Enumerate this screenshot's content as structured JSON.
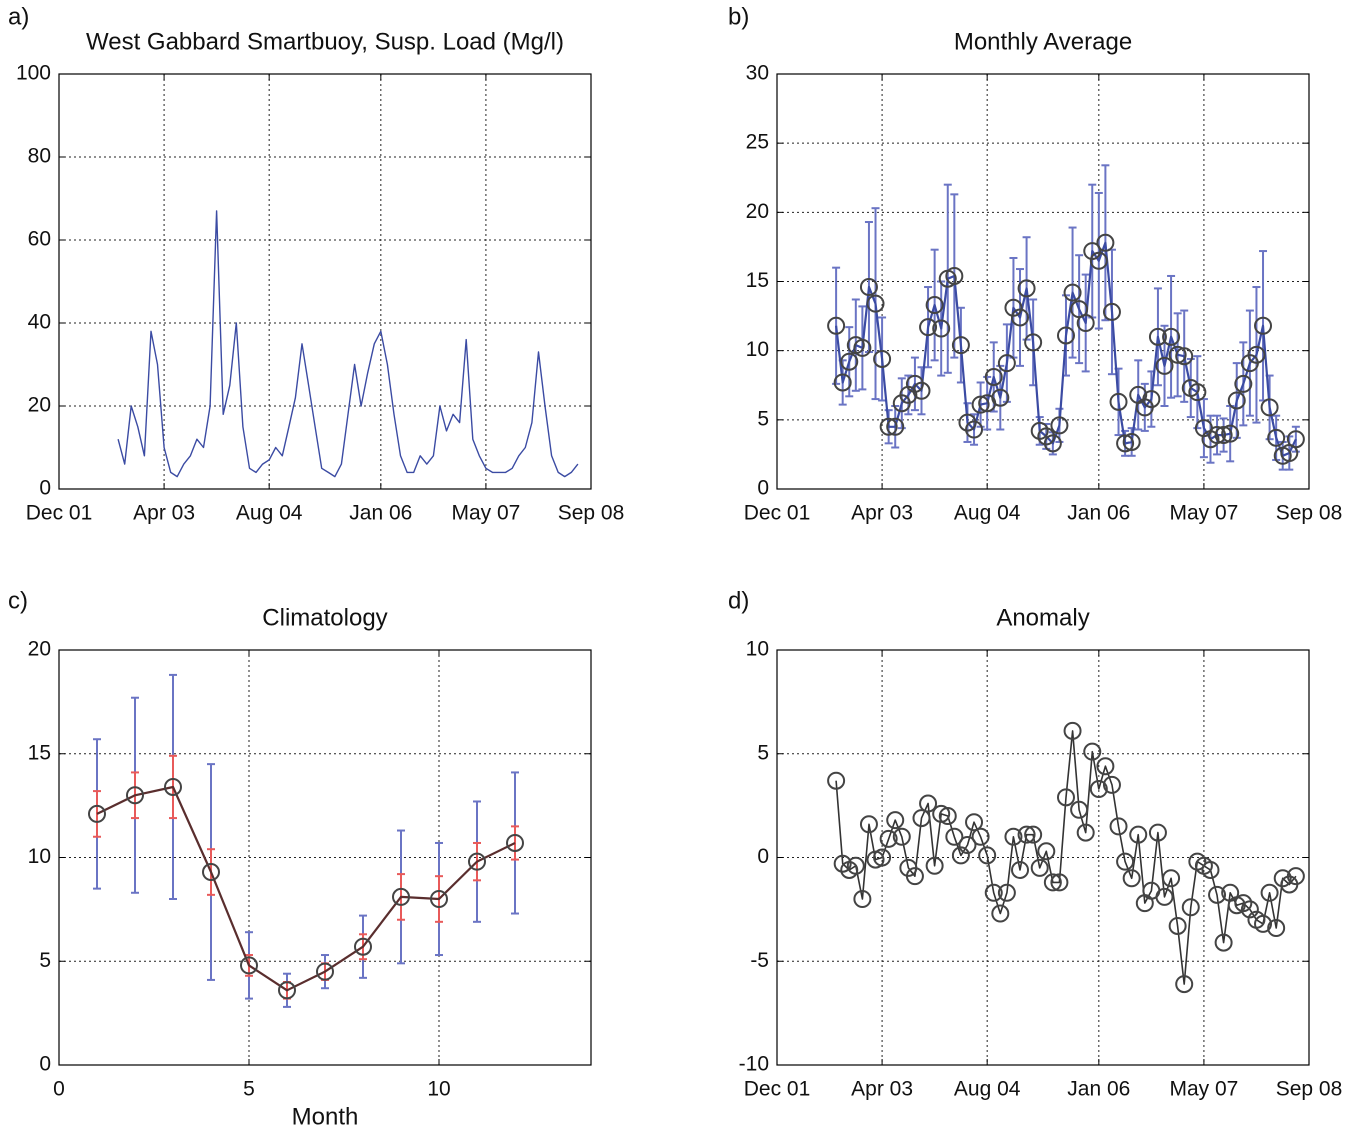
{
  "chart_data": [
    {
      "type": "line",
      "label": "a)",
      "title": "West Gabbard Smartbuoy, Susp. Load (Mg/l)",
      "color": "#3b4ba3",
      "markers": false,
      "grid": true,
      "xlim": [
        "2001-12",
        "2008-09"
      ],
      "xticks": [
        {
          "value": "2001-12",
          "label": "Dec 01"
        },
        {
          "value": "2003-04",
          "label": "Apr 03"
        },
        {
          "value": "2004-08",
          "label": "Aug 04"
        },
        {
          "value": "2006-01",
          "label": "Jan 06"
        },
        {
          "value": "2007-05",
          "label": "May 07"
        },
        {
          "value": "2008-09",
          "label": "Sep 08"
        }
      ],
      "ylim": [
        0,
        100
      ],
      "yticks": [
        0,
        20,
        40,
        60,
        80,
        100
      ],
      "x": [
        "2002-09",
        "2002-10",
        "2002-11",
        "2002-12",
        "2003-01",
        "2003-02",
        "2003-03",
        "2003-04",
        "2003-05",
        "2003-06",
        "2003-07",
        "2003-08",
        "2003-09",
        "2003-10",
        "2003-11",
        "2003-12",
        "2004-01",
        "2004-02",
        "2004-03",
        "2004-04",
        "2004-05",
        "2004-06",
        "2004-07",
        "2004-08",
        "2004-09",
        "2004-10",
        "2004-11",
        "2004-12",
        "2005-01",
        "2005-02",
        "2005-03",
        "2005-04",
        "2005-05",
        "2005-06",
        "2005-07",
        "2005-08",
        "2005-09",
        "2005-10",
        "2005-11",
        "2005-12",
        "2006-01",
        "2006-02",
        "2006-03",
        "2006-04",
        "2006-05",
        "2006-06",
        "2006-07",
        "2006-08",
        "2006-09",
        "2006-10",
        "2006-11",
        "2006-12",
        "2007-01",
        "2007-02",
        "2007-03",
        "2007-04",
        "2007-05",
        "2007-06",
        "2007-07",
        "2007-08",
        "2007-09",
        "2007-10",
        "2007-11",
        "2007-12",
        "2008-01",
        "2008-02",
        "2008-03",
        "2008-04",
        "2008-05",
        "2008-06",
        "2008-07"
      ],
      "values": [
        12,
        6,
        20,
        15,
        8,
        38,
        30,
        10,
        4,
        3,
        6,
        8,
        12,
        10,
        20,
        67,
        18,
        25,
        40,
        15,
        5,
        4,
        6,
        7,
        10,
        8,
        15,
        22,
        35,
        25,
        15,
        5,
        4,
        3,
        6,
        18,
        30,
        20,
        28,
        35,
        38,
        30,
        18,
        8,
        4,
        4,
        8,
        6,
        8,
        20,
        14,
        18,
        16,
        36,
        12,
        8,
        5,
        4,
        4,
        4,
        5,
        8,
        10,
        16,
        33,
        20,
        8,
        4,
        3,
        4,
        6
      ]
    },
    {
      "type": "errorbar",
      "label": "b)",
      "title": "Monthly Average",
      "color": "#3b4ba3",
      "error_color": "#6a74c4",
      "marker_color": "#444444",
      "grid": true,
      "xlim": [
        "2001-12",
        "2008-09"
      ],
      "xticks": [
        {
          "value": "2001-12",
          "label": "Dec 01"
        },
        {
          "value": "2003-04",
          "label": "Apr 03"
        },
        {
          "value": "2004-08",
          "label": "Aug 04"
        },
        {
          "value": "2006-01",
          "label": "Jan 06"
        },
        {
          "value": "2007-05",
          "label": "May 07"
        },
        {
          "value": "2008-09",
          "label": "Sep 08"
        }
      ],
      "ylim": [
        0,
        30
      ],
      "yticks": [
        0,
        5,
        10,
        15,
        20,
        25,
        30
      ],
      "x": [
        "2002-09",
        "2002-10",
        "2002-11",
        "2002-12",
        "2003-01",
        "2003-02",
        "2003-03",
        "2003-04",
        "2003-05",
        "2003-06",
        "2003-07",
        "2003-08",
        "2003-09",
        "2003-10",
        "2003-11",
        "2003-12",
        "2004-01",
        "2004-02",
        "2004-03",
        "2004-04",
        "2004-05",
        "2004-06",
        "2004-07",
        "2004-08",
        "2004-09",
        "2004-10",
        "2004-11",
        "2004-12",
        "2005-01",
        "2005-02",
        "2005-03",
        "2005-04",
        "2005-05",
        "2005-06",
        "2005-07",
        "2005-08",
        "2005-09",
        "2005-10",
        "2005-11",
        "2005-12",
        "2006-01",
        "2006-02",
        "2006-03",
        "2006-04",
        "2006-05",
        "2006-06",
        "2006-07",
        "2006-08",
        "2006-09",
        "2006-10",
        "2006-11",
        "2006-12",
        "2007-01",
        "2007-02",
        "2007-03",
        "2007-04",
        "2007-05",
        "2007-06",
        "2007-07",
        "2007-08",
        "2007-09",
        "2007-10",
        "2007-11",
        "2007-12",
        "2008-01",
        "2008-02",
        "2008-03",
        "2008-04",
        "2008-05",
        "2008-06",
        "2008-07"
      ],
      "values": [
        11.8,
        7.7,
        9.2,
        10.4,
        10.2,
        14.6,
        13.4,
        9.4,
        4.5,
        4.5,
        6.2,
        6.8,
        7.6,
        7.1,
        11.7,
        13.3,
        11.6,
        15.2,
        15.4,
        10.4,
        4.8,
        4.3,
        6.1,
        6.2,
        8.1,
        6.6,
        9.1,
        13.1,
        12.4,
        14.5,
        10.6,
        4.2,
        3.8,
        3.3,
        4.6,
        11.1,
        14.2,
        13.0,
        12.0,
        17.2,
        16.5,
        17.8,
        12.8,
        6.3,
        3.3,
        3.4,
        6.8,
        5.9,
        6.5,
        11.0,
        8.9,
        11.0,
        9.7,
        9.6,
        7.3,
        7.0,
        4.4,
        3.6,
        3.9,
        3.9,
        4.0,
        6.4,
        7.6,
        9.1,
        9.7,
        11.8,
        5.9,
        3.7,
        2.4,
        2.6,
        3.6
      ],
      "errors": [
        4.2,
        1.6,
        2.5,
        3.3,
        3.0,
        4.7,
        6.9,
        3.0,
        1.2,
        1.5,
        1.8,
        1.4,
        1.9,
        1.7,
        2.9,
        4.0,
        3.4,
        6.8,
        5.9,
        2.7,
        1.4,
        1.1,
        1.6,
        1.9,
        2.5,
        2.3,
        2.8,
        3.6,
        3.5,
        3.7,
        3.1,
        1.0,
        0.9,
        0.8,
        1.2,
        2.9,
        4.7,
        3.9,
        3.5,
        4.8,
        4.9,
        5.6,
        4.5,
        2.4,
        0.9,
        1.0,
        2.5,
        1.7,
        2.0,
        3.5,
        2.9,
        4.4,
        3.0,
        3.3,
        2.1,
        2.6,
        2.1,
        1.7,
        1.4,
        1.2,
        2.0,
        2.7,
        3.0,
        3.8,
        4.9,
        5.4,
        2.3,
        1.6,
        1.0,
        1.2,
        0.9
      ]
    },
    {
      "type": "errorbar",
      "label": "c)",
      "title": "Climatology",
      "xlabel": "Month",
      "color": "#5a2e2e",
      "error_color": "#6a74c4",
      "se_color": "#e85a5a",
      "marker_color": "#444444",
      "grid": true,
      "xlim": [
        0,
        14
      ],
      "xticks": [
        0,
        5,
        10
      ],
      "ylim": [
        0,
        20
      ],
      "yticks": [
        0,
        5,
        10,
        15,
        20
      ],
      "x": [
        1,
        2,
        3,
        4,
        5,
        6,
        7,
        8,
        9,
        10,
        11,
        12
      ],
      "values": [
        12.1,
        13.0,
        13.4,
        9.3,
        4.8,
        3.6,
        4.5,
        5.7,
        8.1,
        8.0,
        9.8,
        10.7
      ],
      "errors": [
        3.6,
        4.7,
        5.4,
        5.2,
        1.6,
        0.8,
        0.8,
        1.5,
        3.2,
        2.7,
        2.9,
        3.4
      ],
      "se_errors": [
        1.1,
        1.1,
        1.5,
        1.1,
        0.5,
        0.4,
        0.4,
        0.6,
        1.1,
        1.1,
        0.9,
        0.8
      ]
    },
    {
      "type": "line",
      "label": "d)",
      "title": "Anomaly",
      "color": "#333333",
      "marker_color": "#444444",
      "markers": true,
      "grid": true,
      "xlim": [
        "2001-12",
        "2008-09"
      ],
      "xticks": [
        {
          "value": "2001-12",
          "label": "Dec 01"
        },
        {
          "value": "2003-04",
          "label": "Apr 03"
        },
        {
          "value": "2004-08",
          "label": "Aug 04"
        },
        {
          "value": "2006-01",
          "label": "Jan 06"
        },
        {
          "value": "2007-05",
          "label": "May 07"
        },
        {
          "value": "2008-09",
          "label": "Sep 08"
        }
      ],
      "ylim": [
        -10,
        10
      ],
      "yticks": [
        -10,
        -5,
        0,
        5,
        10
      ],
      "x": [
        "2002-09",
        "2002-10",
        "2002-11",
        "2002-12",
        "2003-01",
        "2003-02",
        "2003-03",
        "2003-04",
        "2003-05",
        "2003-06",
        "2003-07",
        "2003-08",
        "2003-09",
        "2003-10",
        "2003-11",
        "2003-12",
        "2004-01",
        "2004-02",
        "2004-03",
        "2004-04",
        "2004-05",
        "2004-06",
        "2004-07",
        "2004-08",
        "2004-09",
        "2004-10",
        "2004-11",
        "2004-12",
        "2005-01",
        "2005-02",
        "2005-03",
        "2005-04",
        "2005-05",
        "2005-06",
        "2005-07",
        "2005-08",
        "2005-09",
        "2005-10",
        "2005-11",
        "2005-12",
        "2006-01",
        "2006-02",
        "2006-03",
        "2006-04",
        "2006-05",
        "2006-06",
        "2006-07",
        "2006-08",
        "2006-09",
        "2006-10",
        "2006-11",
        "2006-12",
        "2007-01",
        "2007-02",
        "2007-03",
        "2007-04",
        "2007-05",
        "2007-06",
        "2007-07",
        "2007-08",
        "2007-09",
        "2007-10",
        "2007-11",
        "2007-12",
        "2008-01",
        "2008-02",
        "2008-03",
        "2008-04",
        "2008-05",
        "2008-06",
        "2008-07"
      ],
      "values": [
        3.7,
        -0.3,
        -0.6,
        -0.4,
        -2.0,
        1.6,
        -0.1,
        0.0,
        0.9,
        1.8,
        1.0,
        -0.5,
        -0.9,
        1.9,
        2.6,
        -0.4,
        2.1,
        2.0,
        1.0,
        0.1,
        0.6,
        1.7,
        1.0,
        0.1,
        -1.7,
        -2.7,
        -1.7,
        1.0,
        -0.6,
        1.1,
        1.1,
        -0.5,
        0.3,
        -1.2,
        -1.2,
        2.9,
        6.1,
        2.3,
        1.2,
        5.1,
        3.3,
        4.4,
        3.5,
        1.5,
        -0.2,
        -1.0,
        1.1,
        -2.2,
        -1.6,
        1.2,
        -1.9,
        -1.0,
        -3.3,
        -6.1,
        -2.4,
        -0.2,
        -0.4,
        -0.6,
        -1.8,
        -4.1,
        -1.7,
        -2.3,
        -2.2,
        -2.5,
        -3.0,
        -3.2,
        -1.7,
        -3.4,
        -1.0,
        -1.3,
        -0.9
      ]
    }
  ]
}
